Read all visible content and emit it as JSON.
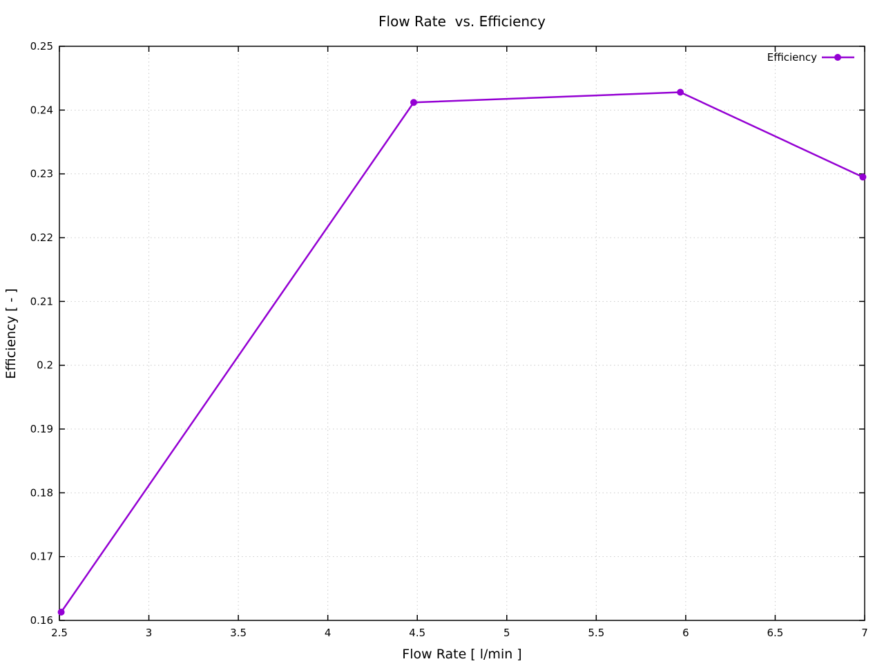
{
  "chart_data": {
    "type": "line",
    "title": "Flow Rate  vs. Efficiency",
    "xlabel": "Flow Rate [ l/min ]",
    "ylabel": "Efficiency [ - ]",
    "xlim": [
      2.5,
      7
    ],
    "ylim": [
      0.16,
      0.25
    ],
    "xtick_labels": [
      "2.5",
      "3",
      "3.5",
      "4",
      "4.5",
      "5",
      "5.5",
      "6",
      "6.5",
      "7"
    ],
    "ytick_labels": [
      "0.16",
      "0.17",
      "0.18",
      "0.19",
      "0.2",
      "0.21",
      "0.22",
      "0.23",
      "0.24",
      "0.25"
    ],
    "grid": true,
    "legend": {
      "label": "Efficiency",
      "position": "top-right-inside"
    },
    "series": [
      {
        "name": "Efficiency",
        "color": "#9400d3",
        "marker": "filled-circle",
        "points": [
          {
            "x": 2.51,
            "y": 0.1613
          },
          {
            "x": 4.48,
            "y": 0.2412
          },
          {
            "x": 5.97,
            "y": 0.2428
          },
          {
            "x": 6.99,
            "y": 0.2295
          }
        ]
      }
    ],
    "colors": {
      "line": "#9400d3",
      "grid": "#c9c9c9",
      "axis": "#000000",
      "text": "#000000",
      "background": "#ffffff"
    }
  }
}
